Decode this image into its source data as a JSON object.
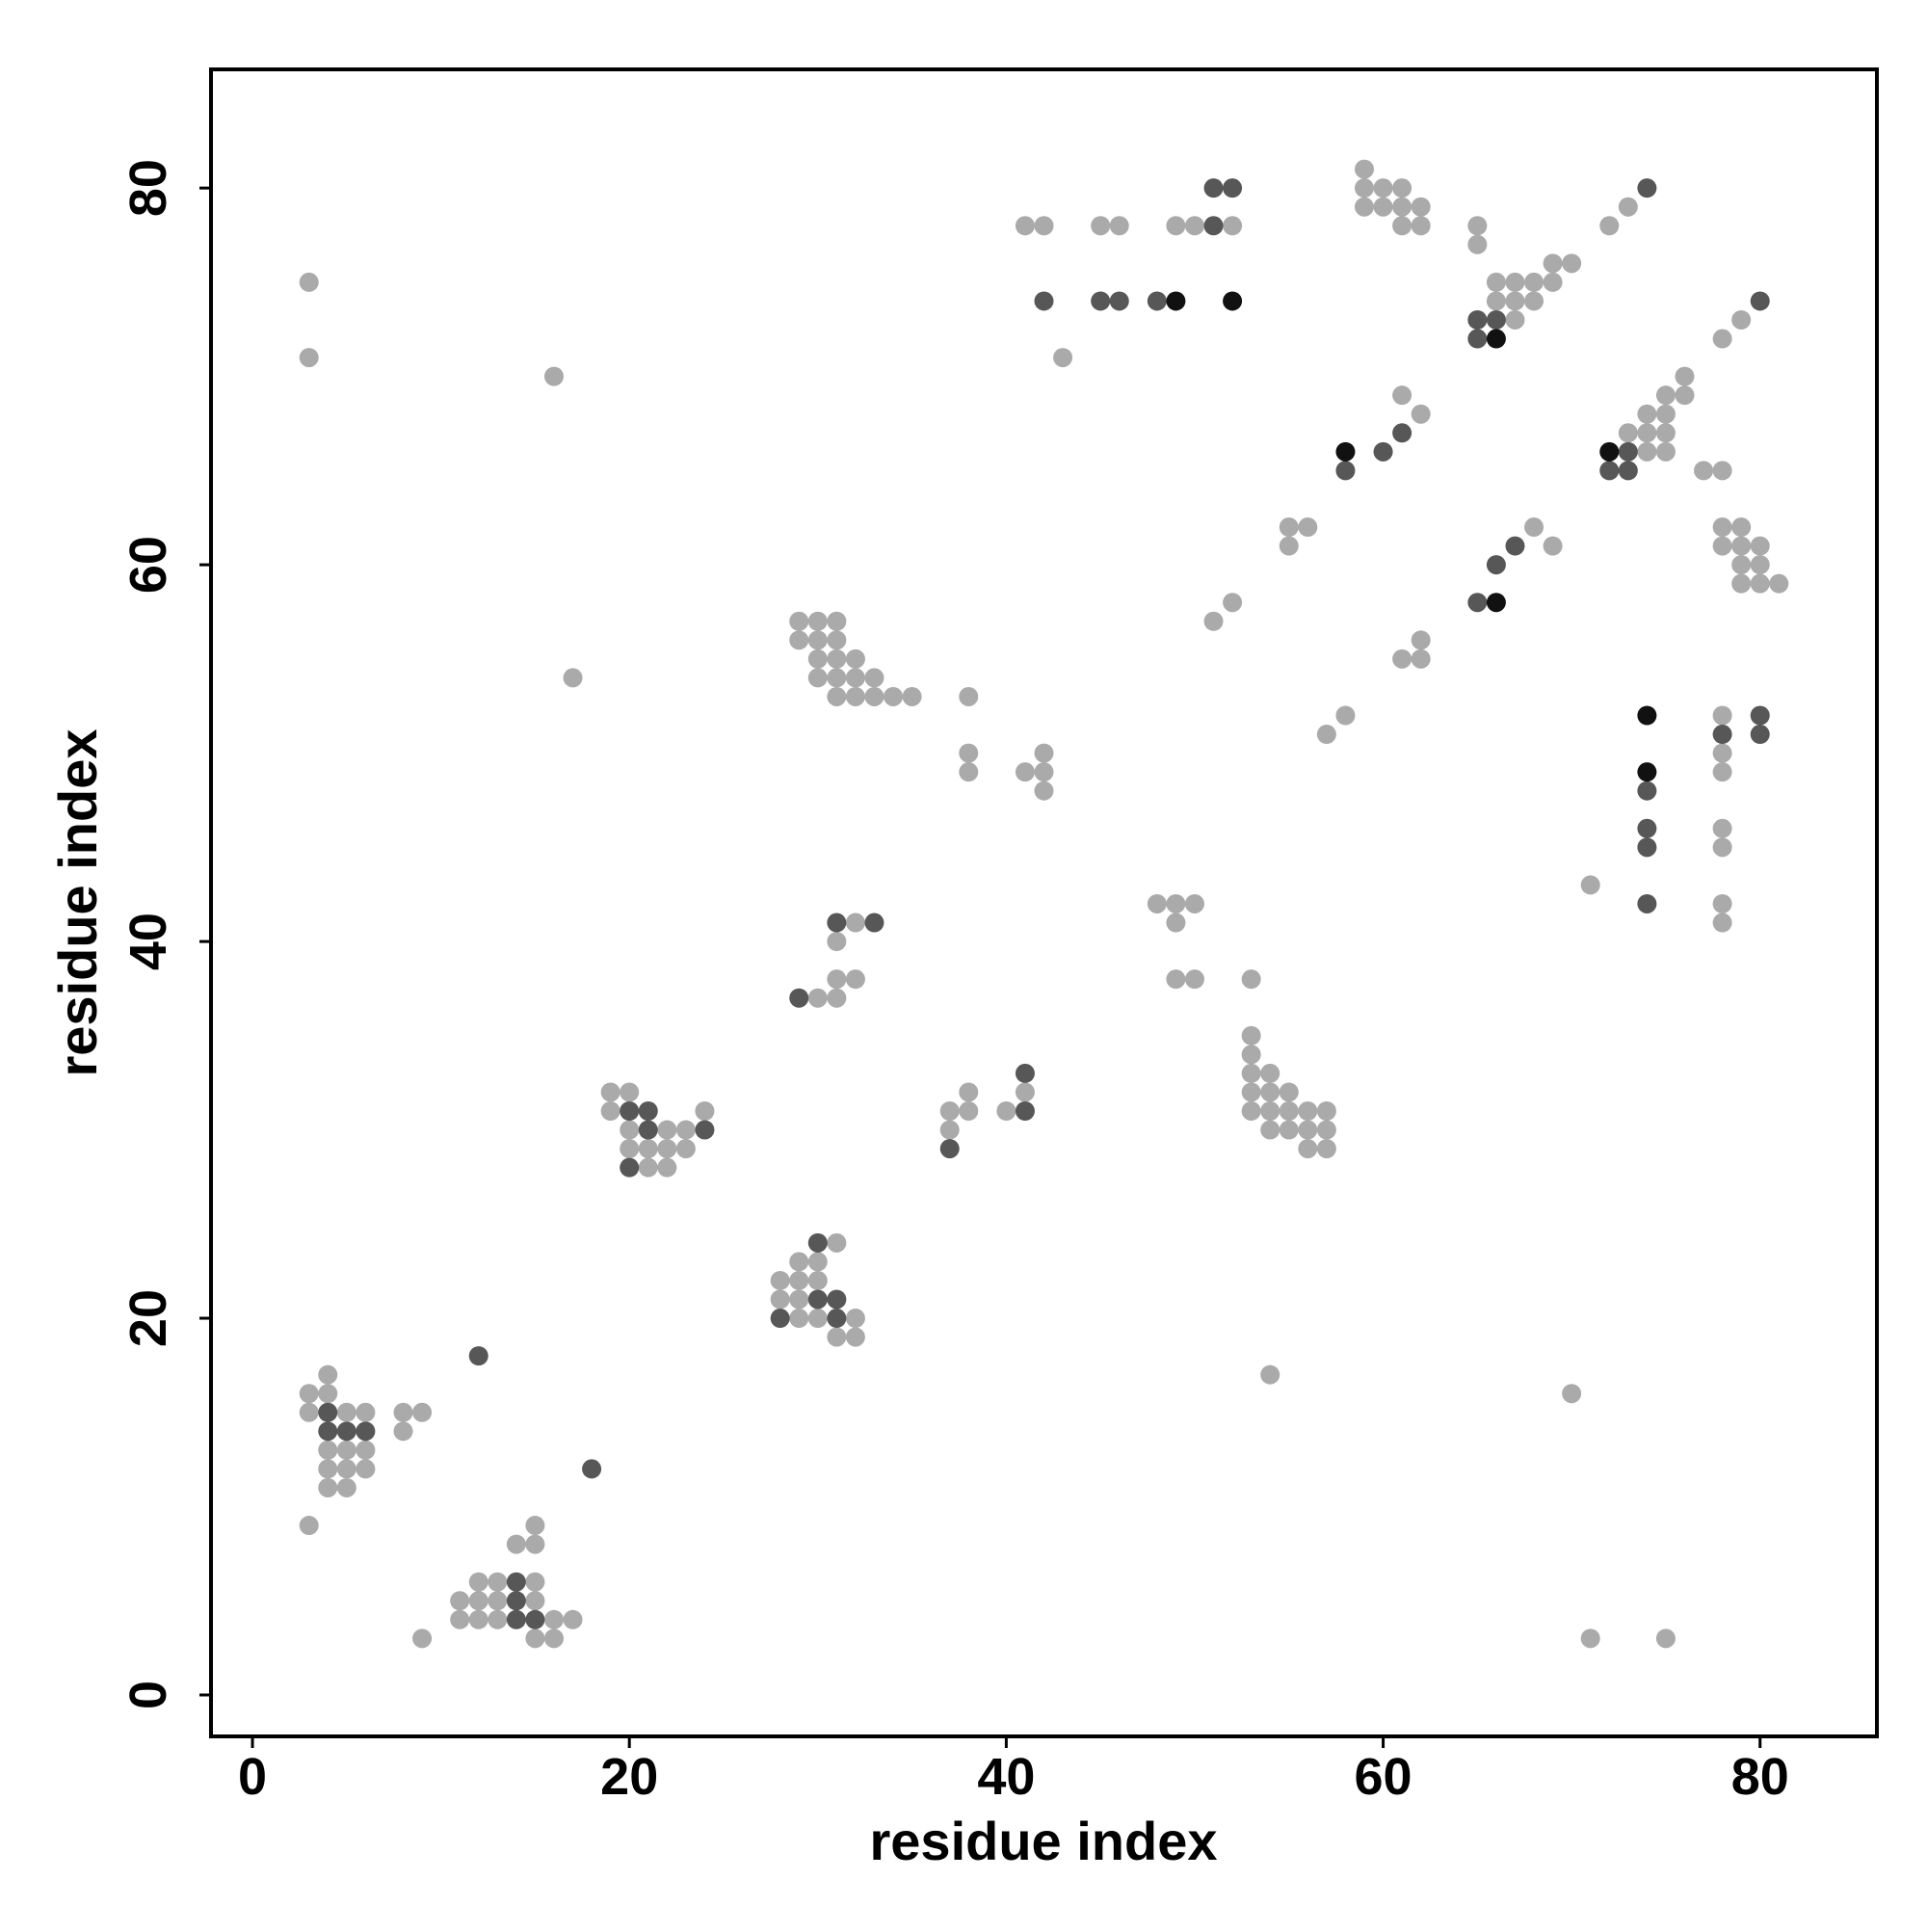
{
  "chart_data": {
    "type": "scatter",
    "x_label": "residue index",
    "y_label": "residue index",
    "xlim": [
      -2.2,
      86.2
    ],
    "ylim": [
      -2.2,
      86.3
    ],
    "xticks": [
      0,
      20,
      40,
      60,
      80
    ],
    "yticks": [
      0,
      20,
      40,
      60,
      80
    ],
    "series": [
      {
        "color": "#aaaaaa",
        "x": [
          3,
          3,
          4,
          4,
          3,
          5,
          6,
          8,
          9,
          8,
          4,
          5,
          6,
          4,
          5,
          6,
          4,
          5,
          9,
          15,
          14,
          15,
          12,
          13,
          15,
          11,
          12,
          13,
          15,
          11,
          12,
          13,
          16,
          17,
          15,
          16,
          16,
          3,
          3,
          17,
          19,
          20,
          19,
          24,
          20,
          22,
          23,
          20,
          21,
          22,
          23,
          21,
          22,
          31,
          29,
          30,
          28,
          29,
          30,
          28,
          29,
          29,
          30,
          32,
          31,
          32,
          32,
          31,
          31,
          32,
          30,
          31,
          29,
          30,
          31,
          29,
          30,
          31,
          30,
          31,
          32,
          30,
          31,
          32,
          33,
          31,
          32,
          33,
          34,
          35,
          38,
          38,
          38,
          37,
          38,
          38,
          37,
          40,
          41,
          41,
          42,
          42,
          42,
          41,
          42,
          45,
          46,
          49,
          50,
          52,
          43,
          48,
          49,
          50,
          49,
          49,
          50,
          51,
          52,
          53,
          53,
          53,
          53,
          54,
          53,
          54,
          55,
          53,
          54,
          55,
          56,
          57,
          54,
          55,
          56,
          57,
          56,
          57,
          54,
          55,
          56,
          55,
          57,
          58,
          61,
          62,
          59,
          59,
          60,
          61,
          59,
          60,
          61,
          62,
          61,
          62,
          61,
          62,
          62,
          68,
          69,
          65,
          65,
          69,
          70,
          66,
          67,
          68,
          69,
          66,
          67,
          68,
          67,
          72,
          73,
          79,
          78,
          76,
          75,
          76,
          74,
          75,
          73,
          74,
          75,
          74,
          75,
          77,
          78,
          78,
          79,
          78,
          79,
          80,
          79,
          80,
          79,
          80,
          81,
          71,
          78,
          78,
          78,
          78,
          78,
          78,
          78,
          70,
          71,
          75
        ],
        "values": [
          9,
          16,
          16,
          17,
          15,
          15,
          15,
          15,
          15,
          14,
          13,
          13,
          13,
          12,
          12,
          12,
          11,
          11,
          3,
          9,
          8,
          8,
          6,
          6,
          6,
          5,
          5,
          5,
          5,
          4,
          4,
          4,
          4,
          4,
          3,
          3,
          70,
          75,
          71,
          54,
          32,
          32,
          31,
          31,
          30,
          30,
          30,
          29,
          29,
          29,
          29,
          28,
          28,
          24,
          23,
          23,
          22,
          22,
          22,
          21,
          21,
          20,
          20,
          20,
          19,
          19,
          41,
          40,
          38,
          38,
          37,
          37,
          57,
          57,
          57,
          56,
          56,
          56,
          55,
          55,
          55,
          54,
          54,
          54,
          54,
          53,
          53,
          53,
          53,
          53,
          53,
          50,
          49,
          31,
          31,
          32,
          30,
          31,
          32,
          49,
          49,
          50,
          48,
          78,
          78,
          78,
          78,
          78,
          78,
          78,
          71,
          42,
          42,
          42,
          41,
          38,
          38,
          57,
          58,
          38,
          35,
          34,
          33,
          33,
          32,
          32,
          32,
          31,
          31,
          31,
          31,
          31,
          30,
          30,
          30,
          30,
          29,
          29,
          17,
          62,
          62,
          61,
          51,
          52,
          69,
          68,
          81,
          80,
          80,
          80,
          79,
          79,
          79,
          79,
          78,
          78,
          55,
          55,
          56,
          62,
          61,
          78,
          77,
          76,
          76,
          75,
          75,
          75,
          75,
          74,
          74,
          74,
          73,
          78,
          79,
          73,
          72,
          70,
          69,
          69,
          68,
          68,
          67,
          67,
          67,
          66,
          66,
          65,
          65,
          62,
          62,
          61,
          61,
          61,
          60,
          60,
          59,
          59,
          59,
          43,
          52,
          50,
          49,
          46,
          45,
          42,
          41,
          16,
          3,
          3
        ]
      },
      {
        "color": "#575757",
        "x": [
          4,
          4,
          5,
          6,
          12,
          18,
          14,
          14,
          14,
          15,
          20,
          21,
          21,
          24,
          20,
          30,
          30,
          31,
          28,
          31,
          31,
          33,
          29,
          37,
          41,
          41,
          51,
          51,
          52,
          42,
          45,
          46,
          48,
          58,
          60,
          61,
          65,
          66,
          67,
          65,
          66,
          65,
          74,
          80,
          73,
          72,
          73,
          74,
          74,
          74,
          74,
          78,
          80,
          80
        ],
        "values": [
          15,
          14,
          14,
          14,
          18,
          12,
          6,
          5,
          4,
          4,
          31,
          31,
          30,
          30,
          28,
          24,
          21,
          21,
          20,
          20,
          41,
          41,
          37,
          29,
          31,
          33,
          78,
          80,
          80,
          74,
          74,
          74,
          74,
          65,
          66,
          67,
          58,
          60,
          61,
          73,
          73,
          72,
          80,
          74,
          66,
          65,
          65,
          48,
          46,
          45,
          42,
          51,
          52,
          51
        ]
      },
      {
        "color": "#111111",
        "x": [
          49,
          52,
          58,
          66,
          66,
          72,
          74,
          74
        ],
        "values": [
          74,
          74,
          66,
          58,
          72,
          66,
          52,
          49
        ]
      }
    ]
  }
}
